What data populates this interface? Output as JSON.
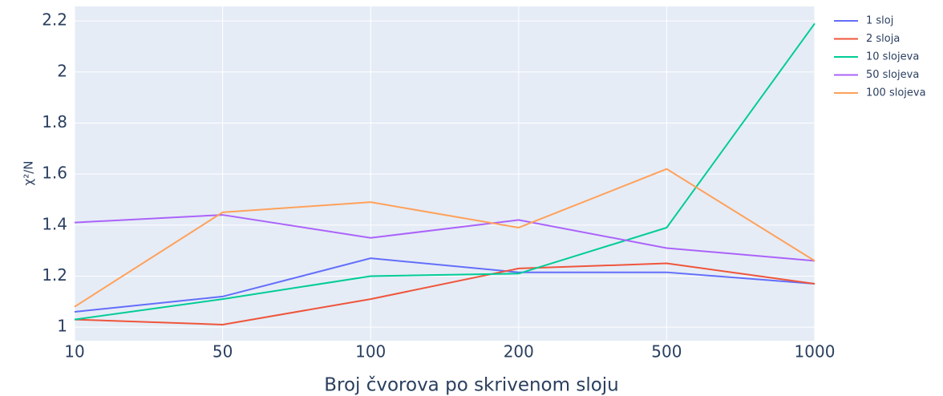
{
  "chart_data": {
    "type": "line",
    "x_label": "Broj čvorova po skrivenom sloju",
    "y_label": "χ²/N",
    "categories": [
      "10",
      "50",
      "100",
      "200",
      "500",
      "1000"
    ],
    "series": [
      {
        "name": "1 sloj",
        "color": "#636efa",
        "values": [
          1.06,
          1.12,
          1.27,
          1.215,
          1.215,
          1.17
        ]
      },
      {
        "name": "2 sloja",
        "color": "#ef553b",
        "values": [
          1.03,
          1.01,
          1.11,
          1.23,
          1.25,
          1.17
        ]
      },
      {
        "name": "10 slojeva",
        "color": "#00cc96",
        "values": [
          1.03,
          1.11,
          1.2,
          1.21,
          1.39,
          2.19
        ]
      },
      {
        "name": "50 slojeva",
        "color": "#ab63fa",
        "values": [
          1.41,
          1.44,
          1.35,
          1.42,
          1.31,
          1.26
        ]
      },
      {
        "name": "100 slojeva",
        "color": "#ffa15a",
        "values": [
          1.08,
          1.45,
          1.49,
          1.39,
          1.62,
          1.26
        ]
      }
    ],
    "ylim": [
      0.947,
      2.257
    ],
    "yticks": [
      1,
      1.2,
      1.4,
      1.6,
      1.8,
      2,
      2.2
    ],
    "grid": true,
    "legend": "top-right"
  }
}
